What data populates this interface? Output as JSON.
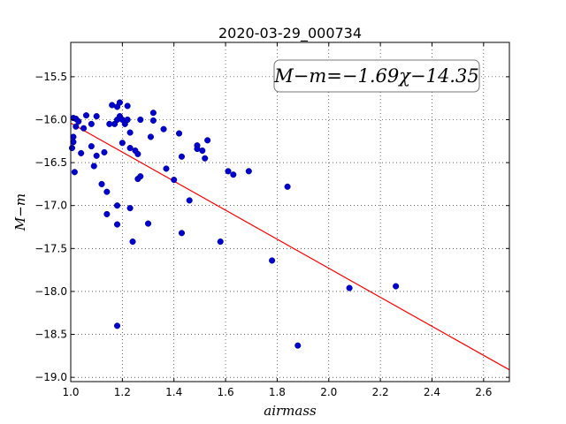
{
  "chart_data": {
    "type": "scatter",
    "title": "2020-03-29_000734",
    "xlabel": "airmass",
    "ylabel": "M−m",
    "xlim": [
      1.0,
      2.7
    ],
    "ylim": [
      -19.05,
      -15.1
    ],
    "y_inverted": true,
    "grid": true,
    "x_ticks": [
      "1.0",
      "1.2",
      "1.4",
      "1.6",
      "1.8",
      "2.0",
      "2.2",
      "2.4",
      "2.6"
    ],
    "x_tick_values": [
      1.0,
      1.2,
      1.4,
      1.6,
      1.8,
      2.0,
      2.2,
      2.4,
      2.6
    ],
    "y_ticks": [
      "−15.5",
      "−16.0",
      "−16.5",
      "−17.0",
      "−17.5",
      "−18.0",
      "−18.5",
      "−19.0"
    ],
    "y_tick_values": [
      -15.5,
      -16.0,
      -16.5,
      -17.0,
      -17.5,
      -18.0,
      -18.5,
      -19.0
    ],
    "annotation": "M−m=−1.69χ−14.35",
    "fit": {
      "slope": -1.69,
      "intercept": -14.35,
      "color": "#ff0000",
      "x_range": [
        1.0,
        2.7
      ]
    },
    "point_color": "#0000cc",
    "points": [
      [
        1.01,
        -15.98
      ],
      [
        1.02,
        -15.99
      ],
      [
        1.03,
        -16.02
      ],
      [
        1.02,
        -16.08
      ],
      [
        1.01,
        -16.2
      ],
      [
        1.01,
        -16.26
      ],
      [
        1.005,
        -16.33
      ],
      [
        1.04,
        -16.39
      ],
      [
        1.015,
        -16.61
      ],
      [
        1.05,
        -16.1
      ],
      [
        1.06,
        -15.95
      ],
      [
        1.08,
        -16.05
      ],
      [
        1.1,
        -15.96
      ],
      [
        1.08,
        -16.31
      ],
      [
        1.1,
        -16.42
      ],
      [
        1.09,
        -16.54
      ],
      [
        1.13,
        -16.38
      ],
      [
        1.12,
        -16.75
      ],
      [
        1.14,
        -16.84
      ],
      [
        1.14,
        -17.1
      ],
      [
        1.15,
        -16.05
      ],
      [
        1.16,
        -15.83
      ],
      [
        1.17,
        -16.05
      ],
      [
        1.18,
        -15.85
      ],
      [
        1.18,
        -16.0
      ],
      [
        1.19,
        -15.96
      ],
      [
        1.19,
        -15.8
      ],
      [
        1.2,
        -16.0
      ],
      [
        1.21,
        -16.05
      ],
      [
        1.22,
        -15.84
      ],
      [
        1.22,
        -16.0
      ],
      [
        1.2,
        -16.27
      ],
      [
        1.23,
        -16.15
      ],
      [
        1.23,
        -16.33
      ],
      [
        1.25,
        -16.36
      ],
      [
        1.26,
        -16.4
      ],
      [
        1.27,
        -16.0
      ],
      [
        1.18,
        -17.0
      ],
      [
        1.18,
        -17.22
      ],
      [
        1.23,
        -17.03
      ],
      [
        1.24,
        -17.42
      ],
      [
        1.26,
        -16.69
      ],
      [
        1.27,
        -16.66
      ],
      [
        1.18,
        -18.4
      ],
      [
        1.31,
        -16.2
      ],
      [
        1.32,
        -16.01
      ],
      [
        1.32,
        -15.92
      ],
      [
        1.36,
        -16.11
      ],
      [
        1.37,
        -16.57
      ],
      [
        1.4,
        -16.7
      ],
      [
        1.42,
        -16.16
      ],
      [
        1.43,
        -16.43
      ],
      [
        1.43,
        -17.32
      ],
      [
        1.46,
        -16.94
      ],
      [
        1.49,
        -16.3
      ],
      [
        1.49,
        -16.34
      ],
      [
        1.51,
        -16.36
      ],
      [
        1.52,
        -16.45
      ],
      [
        1.53,
        -16.24
      ],
      [
        1.3,
        -17.21
      ],
      [
        1.58,
        -17.42
      ],
      [
        1.61,
        -16.6
      ],
      [
        1.63,
        -16.64
      ],
      [
        1.69,
        -16.6
      ],
      [
        1.78,
        -17.64
      ],
      [
        1.84,
        -16.78
      ],
      [
        1.88,
        -18.63
      ],
      [
        2.08,
        -17.96
      ],
      [
        2.26,
        -17.94
      ]
    ]
  }
}
